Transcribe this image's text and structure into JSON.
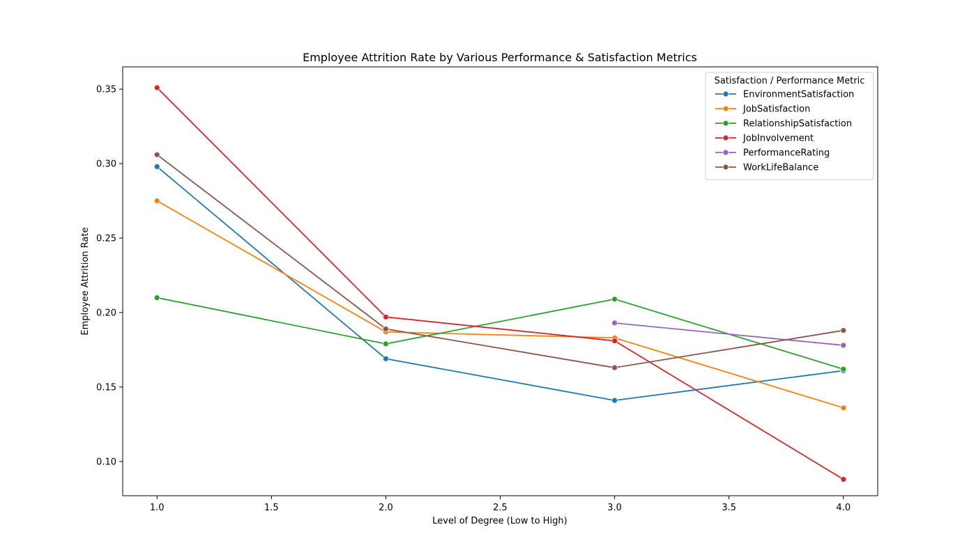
{
  "chart_data": {
    "type": "line",
    "title": "Employee Attrition Rate by Various Performance & Satisfaction Metrics",
    "xlabel": "Level of Degree (Low to High)",
    "ylabel": "Employee Attrition Rate",
    "xlim": [
      0.85,
      4.15
    ],
    "ylim": [
      0.077,
      0.365
    ],
    "xticks": [
      1.0,
      1.5,
      2.0,
      2.5,
      3.0,
      3.5,
      4.0
    ],
    "xtick_labels": [
      "1.0",
      "1.5",
      "2.0",
      "2.5",
      "3.0",
      "3.5",
      "4.0"
    ],
    "yticks": [
      0.1,
      0.15,
      0.2,
      0.25,
      0.3,
      0.35
    ],
    "ytick_labels": [
      "0.10",
      "0.15",
      "0.20",
      "0.25",
      "0.30",
      "0.35"
    ],
    "grid": false,
    "legend": {
      "title": "Satisfaction / Performance Metric",
      "placement": "top-right"
    },
    "series": [
      {
        "name": "EnvironmentSatisfaction",
        "color": "#1f77b4",
        "x": [
          1,
          2,
          3,
          4
        ],
        "y": [
          0.298,
          0.169,
          0.141,
          0.161
        ]
      },
      {
        "name": "JobSatisfaction",
        "color": "#ff7f0e",
        "x": [
          1,
          2,
          3,
          4
        ],
        "y": [
          0.275,
          0.187,
          0.183,
          0.136
        ]
      },
      {
        "name": "RelationshipSatisfaction",
        "color": "#2ca02c",
        "x": [
          1,
          2,
          3,
          4
        ],
        "y": [
          0.21,
          0.179,
          0.209,
          0.162
        ]
      },
      {
        "name": "JobInvolvement",
        "color": "#d62728",
        "x": [
          1,
          2,
          3,
          4
        ],
        "y": [
          0.351,
          0.197,
          0.181,
          0.088
        ]
      },
      {
        "name": "PerformanceRating",
        "color": "#9467bd",
        "x": [
          3,
          4
        ],
        "y": [
          0.193,
          0.178
        ]
      },
      {
        "name": "WorkLifeBalance",
        "color": "#8c564b",
        "x": [
          1,
          2,
          3,
          4
        ],
        "y": [
          0.306,
          0.189,
          0.163,
          0.188
        ]
      }
    ]
  }
}
